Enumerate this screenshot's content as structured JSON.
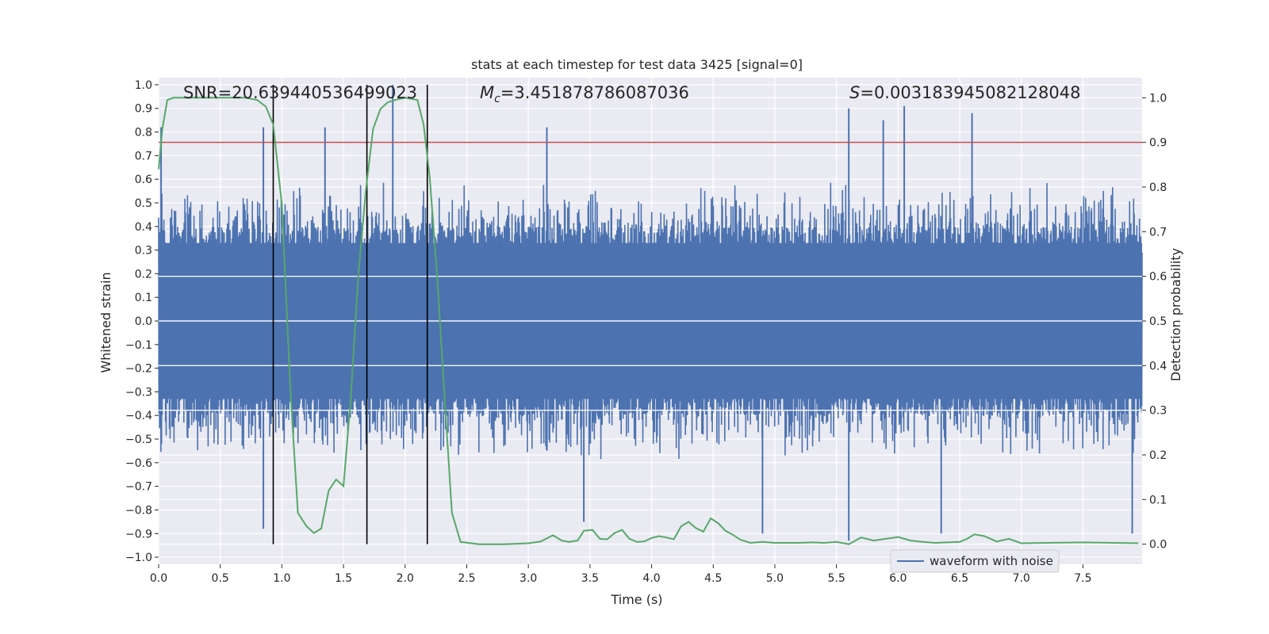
{
  "chart_data": {
    "type": "line",
    "title": "stats at each timestep for test data 3425 [signal=0]",
    "xlabel": "Time (s)",
    "ylabel": "Whitened strain",
    "y2label": "Detection probability",
    "xlim": [
      0.0,
      7.98
    ],
    "ylim": [
      -1.03,
      1.03
    ],
    "y2lim": [
      -0.045,
      1.045
    ],
    "xticks": [
      "0.0",
      "0.5",
      "1.0",
      "1.5",
      "2.0",
      "2.5",
      "3.0",
      "3.5",
      "4.0",
      "4.5",
      "5.0",
      "5.5",
      "6.0",
      "6.5",
      "7.0",
      "7.5"
    ],
    "yticks": [
      "1.0",
      "0.9",
      "0.8",
      "0.7",
      "0.6",
      "0.5",
      "0.4",
      "0.3",
      "0.2",
      "0.1",
      "0.0",
      "−0.1",
      "−0.2",
      "−0.3",
      "−0.4",
      "−0.5",
      "−0.6",
      "−0.7",
      "−0.8",
      "−0.9",
      "−1.0"
    ],
    "y2ticks": [
      "1.0",
      "0.9",
      "0.8",
      "0.7",
      "0.6",
      "0.5",
      "0.4",
      "0.3",
      "0.2",
      "0.1",
      "0.0"
    ],
    "grid": true,
    "legend_position": "lower-right",
    "annotations": {
      "snr": "SNR=20.639440536499023",
      "mc_symbol": "M",
      "mc_sub": "c",
      "mc_value": "=3.451878786087036",
      "s_symbol": "S",
      "s_value": "=0.003183945082128048"
    },
    "threshold": {
      "value": 0.9,
      "axis": "right",
      "color": "#c44e52"
    },
    "vertical_lines": [
      0.93,
      1.69,
      2.18
    ],
    "series": [
      {
        "name": "waveform with noise",
        "color": "#4c72b0",
        "axis": "left",
        "description_envelope": "dense noise, |strain| mostly < 0.6",
        "peaks": [
          {
            "x": 0.02,
            "y": 0.82
          },
          {
            "x": 0.85,
            "y": 0.82
          },
          {
            "x": 1.35,
            "y": 0.82
          },
          {
            "x": 1.9,
            "y": 1.0
          },
          {
            "x": 3.15,
            "y": 0.82
          },
          {
            "x": 5.6,
            "y": 0.9
          },
          {
            "x": 5.88,
            "y": 0.85
          },
          {
            "x": 6.05,
            "y": 0.91
          },
          {
            "x": 6.6,
            "y": 0.88
          },
          {
            "x": 5.6,
            "y": -0.93
          },
          {
            "x": 0.85,
            "y": -0.88
          },
          {
            "x": 3.45,
            "y": -0.85
          },
          {
            "x": 4.9,
            "y": -0.9
          },
          {
            "x": 6.35,
            "y": -0.9
          },
          {
            "x": 7.9,
            "y": -0.9
          }
        ]
      },
      {
        "name": "Detection probability",
        "color": "#55a868",
        "axis": "right",
        "x": [
          0.0,
          0.03,
          0.07,
          0.12,
          0.2,
          0.3,
          0.5,
          0.7,
          0.8,
          0.87,
          0.93,
          1.0,
          1.07,
          1.13,
          1.2,
          1.26,
          1.32,
          1.38,
          1.44,
          1.5,
          1.56,
          1.62,
          1.68,
          1.74,
          1.8,
          1.86,
          1.92,
          2.0,
          2.1,
          2.15,
          2.2,
          2.26,
          2.32,
          2.38,
          2.45,
          2.6,
          2.8,
          3.0,
          3.1,
          3.2,
          3.27,
          3.33,
          3.4,
          3.45,
          3.52,
          3.58,
          3.64,
          3.7,
          3.76,
          3.82,
          3.88,
          3.94,
          4.0,
          4.06,
          4.12,
          4.18,
          4.24,
          4.3,
          4.36,
          4.42,
          4.48,
          4.54,
          4.6,
          4.66,
          4.72,
          4.8,
          4.9,
          5.0,
          5.1,
          5.2,
          5.3,
          5.4,
          5.5,
          5.6,
          5.7,
          5.8,
          5.9,
          6.0,
          6.1,
          6.2,
          6.3,
          6.4,
          6.5,
          6.56,
          6.62,
          6.7,
          6.8,
          6.9,
          7.0,
          7.2,
          7.5,
          7.95
        ],
        "values": [
          0.84,
          0.93,
          0.995,
          1.0,
          1.0,
          1.0,
          1.0,
          1.0,
          0.995,
          0.98,
          0.94,
          0.76,
          0.34,
          0.07,
          0.04,
          0.025,
          0.035,
          0.12,
          0.145,
          0.13,
          0.33,
          0.6,
          0.79,
          0.93,
          0.975,
          0.99,
          0.995,
          1.0,
          0.995,
          0.94,
          0.82,
          0.6,
          0.33,
          0.07,
          0.005,
          0.0,
          0.0,
          0.002,
          0.006,
          0.02,
          0.008,
          0.005,
          0.008,
          0.03,
          0.032,
          0.012,
          0.011,
          0.025,
          0.032,
          0.012,
          0.005,
          0.006,
          0.014,
          0.018,
          0.015,
          0.011,
          0.04,
          0.05,
          0.036,
          0.028,
          0.058,
          0.047,
          0.03,
          0.021,
          0.01,
          0.003,
          0.005,
          0.003,
          0.003,
          0.003,
          0.004,
          0.003,
          0.005,
          0.0,
          0.015,
          0.008,
          0.012,
          0.016,
          0.008,
          0.005,
          0.003,
          0.004,
          0.005,
          0.012,
          0.022,
          0.018,
          0.006,
          0.012,
          0.002,
          0.003,
          0.004,
          0.002
        ]
      }
    ]
  }
}
